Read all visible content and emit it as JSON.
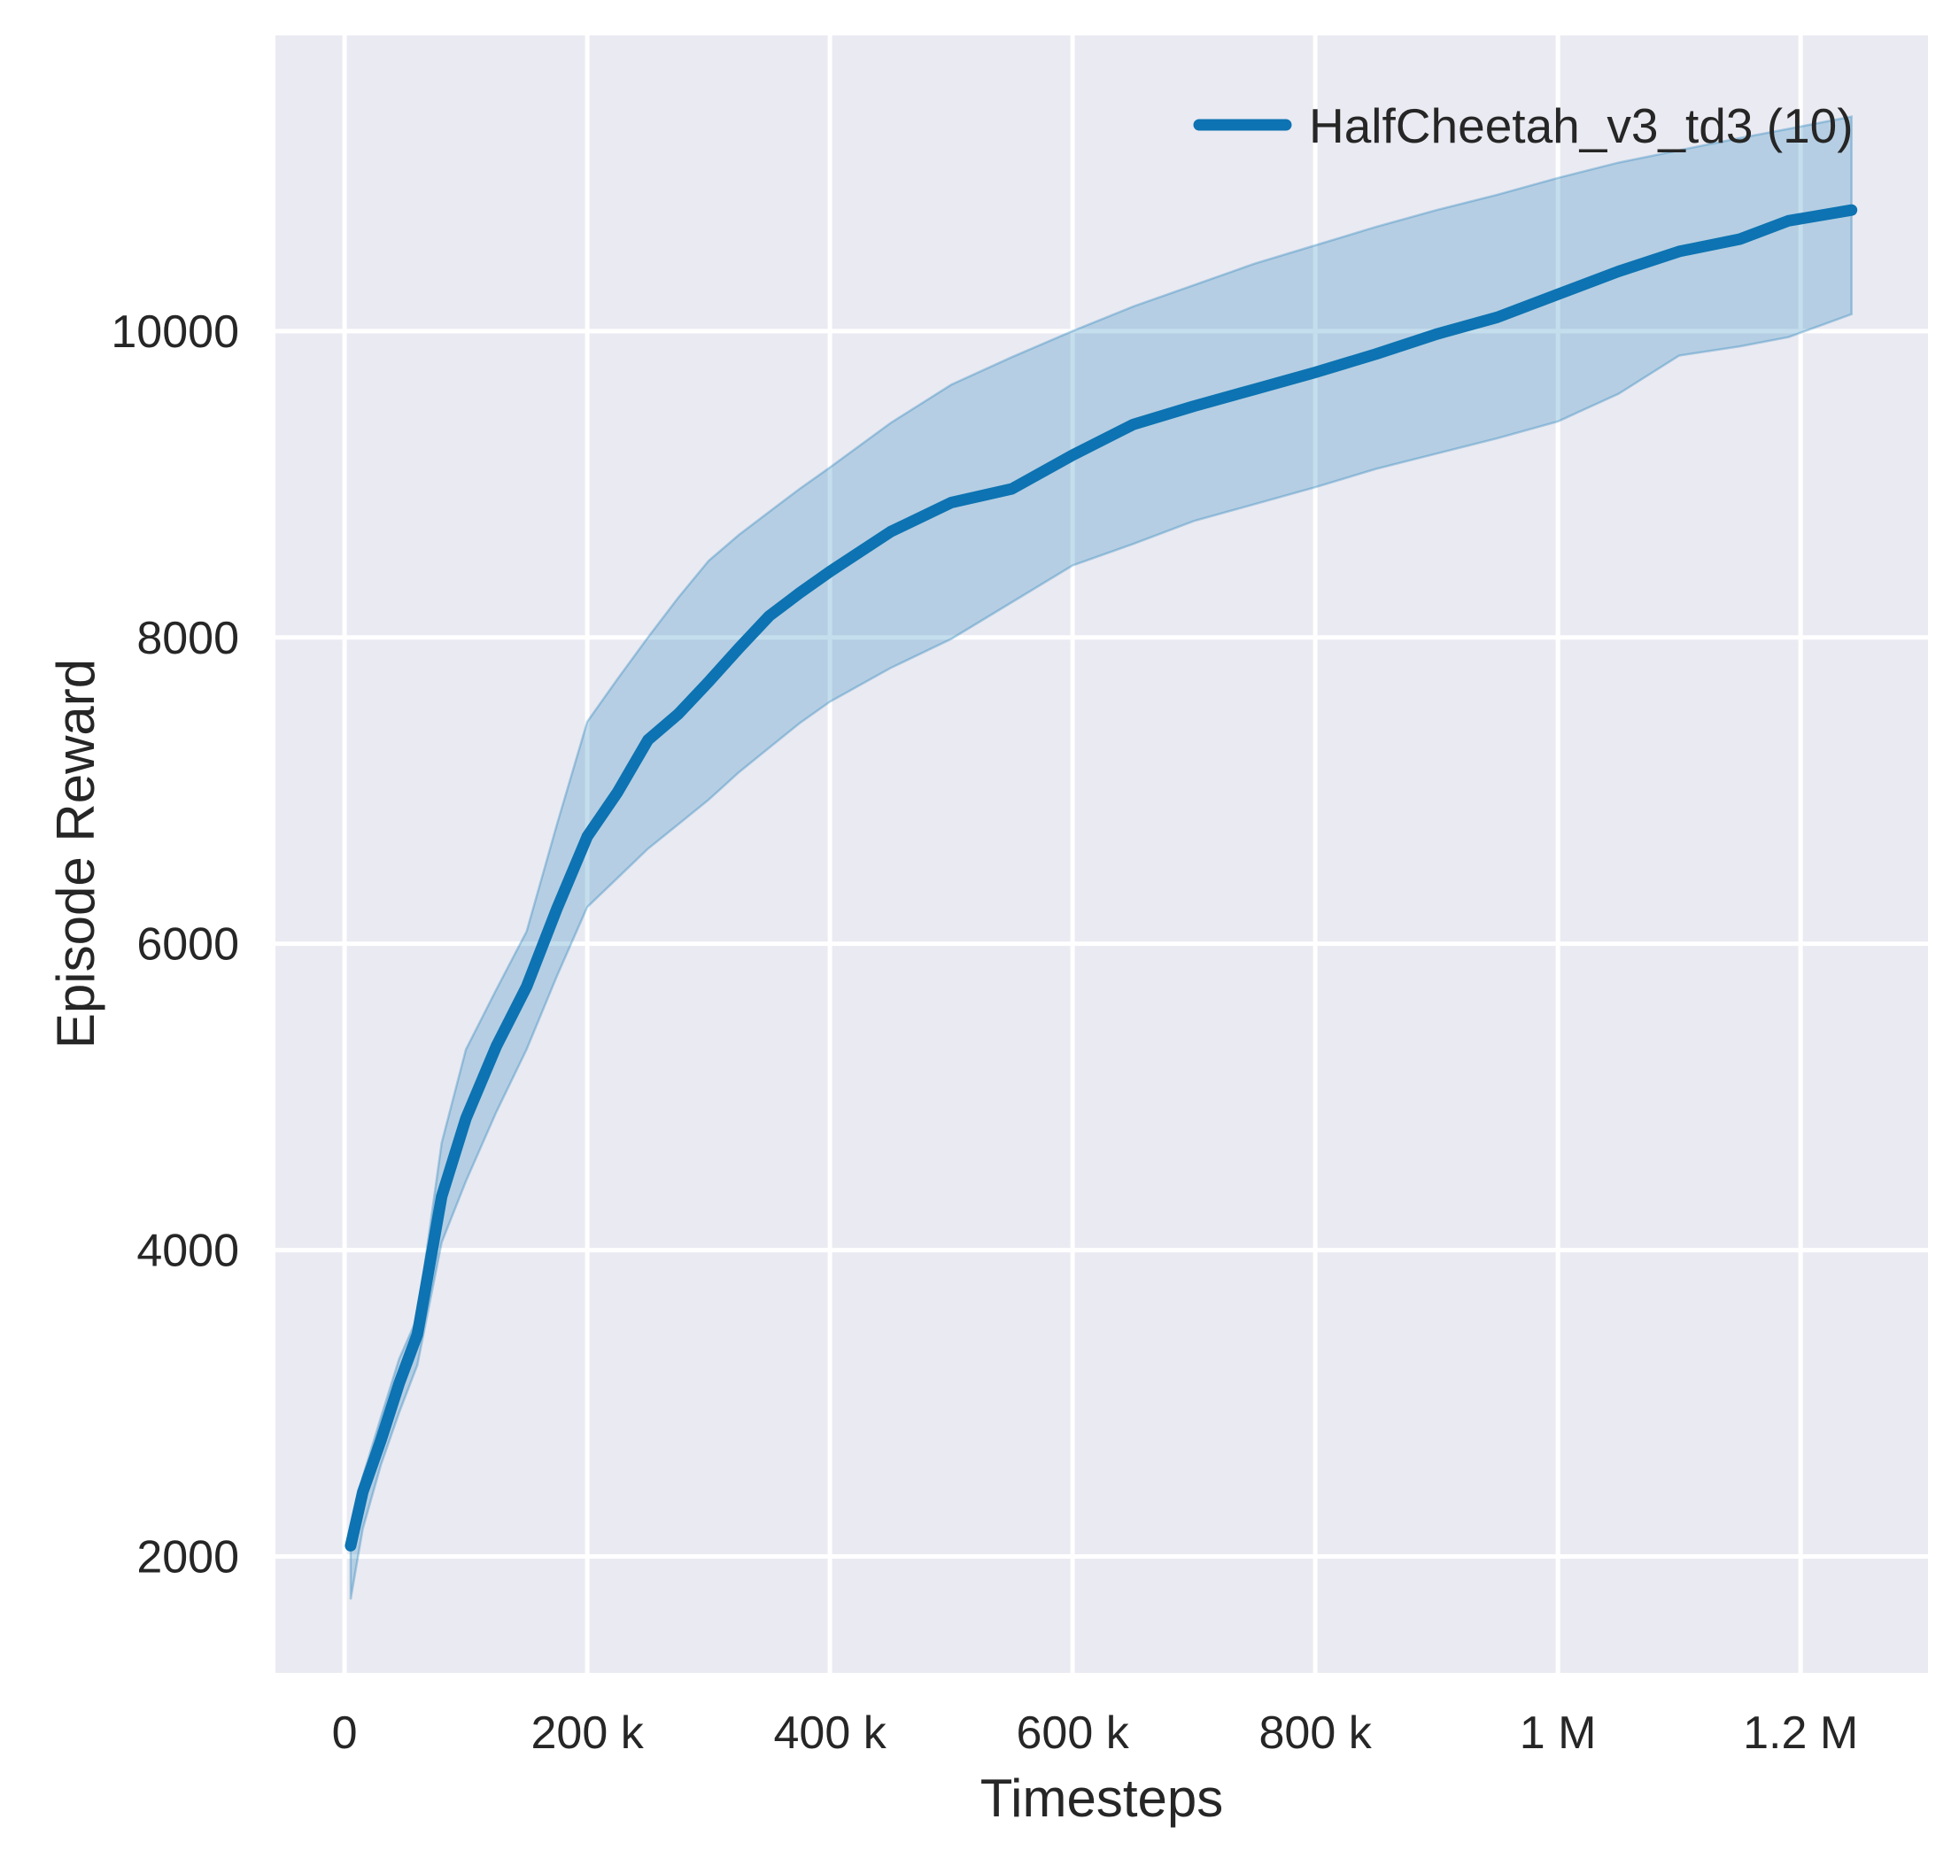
{
  "chart_data": {
    "type": "line",
    "title": "",
    "xlabel": "Timesteps",
    "ylabel": "Episode Reward",
    "grid": true,
    "legend_position": "upper right",
    "legend": [
      {
        "label": "HalfCheetah_v3_td3 (10)",
        "color": "#0d73b2"
      }
    ],
    "colors": {
      "figure_background": "#ffffff",
      "axes_background": "#eaeaf2",
      "grid_line": "#ffffff",
      "text": "#262626",
      "series_line": "#0d73b2"
    },
    "xlim": [
      -57000,
      1305000
    ],
    "ylim": [
      1240,
      11930
    ],
    "x_ticks": [
      {
        "value": 0,
        "label": "0"
      },
      {
        "value": 200000,
        "label": "200 k"
      },
      {
        "value": 400000,
        "label": "400 k"
      },
      {
        "value": 600000,
        "label": "600 k"
      },
      {
        "value": 800000,
        "label": "800 k"
      },
      {
        "value": 1000000,
        "label": "1 M"
      },
      {
        "value": 1200000,
        "label": "1.2 M"
      }
    ],
    "y_ticks": [
      {
        "value": 2000,
        "label": "2000"
      },
      {
        "value": 4000,
        "label": "4000"
      },
      {
        "value": 6000,
        "label": "6000"
      },
      {
        "value": 8000,
        "label": "8000"
      },
      {
        "value": 10000,
        "label": "10000"
      }
    ],
    "series": [
      {
        "name": "HalfCheetah_v3_td3 (10)",
        "color": "#0d73b2",
        "line_width": 13,
        "band_fill_opacity": 0.24,
        "band_edge_opacity": 0.3,
        "x": [
          5000,
          15000,
          30000,
          45000,
          60000,
          80000,
          100000,
          125000,
          150000,
          175000,
          200000,
          225000,
          250000,
          275000,
          300000,
          325000,
          350000,
          375000,
          400000,
          450000,
          500000,
          550000,
          600000,
          650000,
          700000,
          750000,
          800000,
          850000,
          900000,
          950000,
          1000000,
          1050000,
          1100000,
          1150000,
          1190000,
          1242000
        ],
        "mean": [
          2070,
          2420,
          2760,
          3130,
          3450,
          4350,
          4860,
          5330,
          5720,
          6230,
          6700,
          6990,
          7330,
          7500,
          7710,
          7930,
          8140,
          8290,
          8430,
          8690,
          8880,
          8970,
          9190,
          9390,
          9510,
          9620,
          9730,
          9850,
          9980,
          10090,
          10240,
          10390,
          10520,
          10600,
          10720,
          10790
        ],
        "band_low": [
          1720,
          2180,
          2600,
          2940,
          3250,
          4050,
          4450,
          4900,
          5310,
          5790,
          6240,
          6430,
          6620,
          6780,
          6940,
          7120,
          7280,
          7440,
          7580,
          7800,
          7990,
          8230,
          8470,
          8610,
          8760,
          8870,
          8980,
          9100,
          9200,
          9300,
          9410,
          9590,
          9840,
          9900,
          9960,
          10110
        ],
        "band_high": [
          2130,
          2520,
          2910,
          3290,
          3560,
          4700,
          5310,
          5700,
          6080,
          6780,
          7450,
          7730,
          8000,
          8260,
          8500,
          8670,
          8820,
          8970,
          9110,
          9400,
          9650,
          9830,
          10000,
          10160,
          10300,
          10440,
          10560,
          10680,
          10790,
          10890,
          11000,
          11100,
          11180,
          11260,
          11320,
          11400
        ]
      }
    ]
  }
}
